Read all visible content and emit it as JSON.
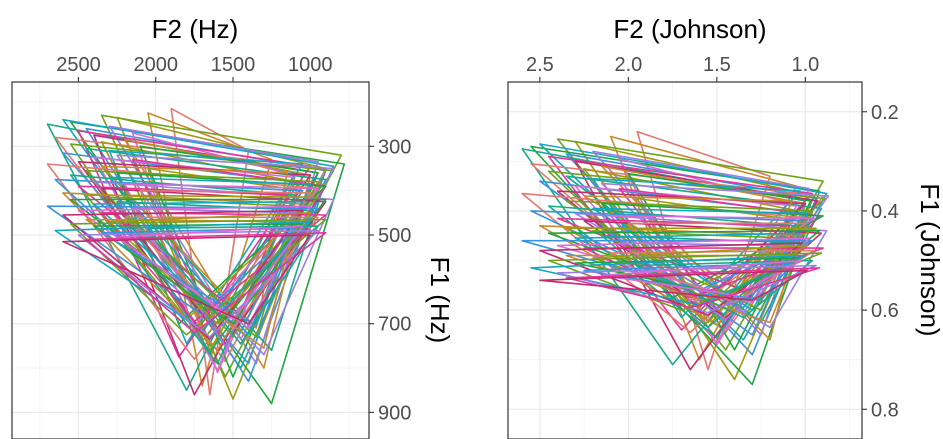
{
  "chart_data": [
    {
      "type": "line",
      "xlabel": "F2 (Hz)",
      "ylabel": "F1 (Hz)",
      "x_axis_position": "top",
      "y_axis_position": "right",
      "x_reversed": true,
      "y_reversed": true,
      "xlim": [
        2930,
        620
      ],
      "ylim": [
        155,
        960
      ],
      "x_ticks": [
        2500,
        2000,
        1500,
        1000
      ],
      "x_tick_labels": [
        "2500",
        "2000",
        "1500",
        "1000"
      ],
      "y_ticks": [
        300,
        500,
        700,
        900
      ],
      "y_tick_labels": [
        "300",
        "500",
        "700",
        "900"
      ],
      "grid": true,
      "legend": "none"
    },
    {
      "type": "line",
      "xlabel": "F2 (Johnson)",
      "ylabel": "F1 (Johnson)",
      "x_axis_position": "top",
      "y_axis_position": "right",
      "x_reversed": true,
      "y_reversed": true,
      "xlim": [
        2.68,
        0.68
      ],
      "ylim": [
        0.14,
        0.86
      ],
      "x_ticks": [
        2.5,
        2.0,
        1.5,
        1.0
      ],
      "x_tick_labels": [
        "2.5",
        "2.0",
        "1.5",
        "1.0"
      ],
      "y_ticks": [
        0.2,
        0.4,
        0.6,
        0.8
      ],
      "y_tick_labels": [
        "0.2",
        "0.4",
        "0.6",
        "0.8"
      ],
      "grid": true,
      "legend": "none"
    }
  ],
  "series_palette": [
    "#E07A70",
    "#C8892A",
    "#9E9A10",
    "#6FA21A",
    "#1FA53F",
    "#17A98A",
    "#15A6C3",
    "#3A93DC",
    "#9B7EE2",
    "#D56CD8",
    "#E0379B",
    "#C42A6E"
  ],
  "f1_hz": [
    [
      215,
      860,
      310
    ],
    [
      225,
      840,
      330
    ],
    [
      235,
      870,
      350
    ],
    [
      230,
      820,
      320
    ],
    [
      245,
      880,
      340
    ],
    [
      250,
      850,
      360
    ],
    [
      240,
      800,
      345
    ],
    [
      260,
      830,
      355
    ],
    [
      255,
      790,
      335
    ],
    [
      270,
      810,
      370
    ],
    [
      265,
      775,
      345
    ],
    [
      275,
      860,
      360
    ],
    [
      280,
      785,
      350
    ],
    [
      285,
      800,
      365
    ],
    [
      290,
      770,
      380
    ],
    [
      295,
      740,
      355
    ],
    [
      300,
      820,
      360
    ],
    [
      305,
      760,
      375
    ],
    [
      310,
      745,
      340
    ],
    [
      315,
      790,
      385
    ],
    [
      320,
      735,
      350
    ],
    [
      325,
      805,
      370
    ],
    [
      330,
      750,
      390
    ],
    [
      335,
      720,
      365
    ],
    [
      340,
      780,
      395
    ],
    [
      345,
      710,
      360
    ],
    [
      350,
      760,
      400
    ],
    [
      355,
      730,
      380
    ],
    [
      360,
      700,
      390
    ],
    [
      365,
      790,
      410
    ],
    [
      370,
      725,
      385
    ],
    [
      375,
      690,
      400
    ],
    [
      380,
      770,
      420
    ],
    [
      385,
      705,
      395
    ],
    [
      390,
      680,
      410
    ],
    [
      395,
      745,
      425
    ],
    [
      400,
      715,
      405
    ],
    [
      405,
      760,
      430
    ],
    [
      410,
      690,
      415
    ],
    [
      415,
      730,
      435
    ],
    [
      420,
      700,
      420
    ],
    [
      425,
      765,
      445
    ],
    [
      430,
      720,
      425
    ],
    [
      435,
      680,
      440
    ],
    [
      440,
      750,
      450
    ],
    [
      445,
      710,
      435
    ],
    [
      450,
      695,
      455
    ],
    [
      455,
      735,
      445
    ],
    [
      460,
      710,
      460
    ],
    [
      465,
      755,
      470
    ],
    [
      470,
      700,
      450
    ],
    [
      475,
      725,
      465
    ],
    [
      480,
      690,
      475
    ],
    [
      485,
      745,
      480
    ],
    [
      490,
      715,
      470
    ],
    [
      495,
      705,
      485
    ],
    [
      500,
      730,
      490
    ],
    [
      505,
      690,
      480
    ],
    [
      510,
      720,
      495
    ],
    [
      515,
      700,
      500
    ]
  ],
  "f2_hz": [
    [
      1900,
      1650,
      1400
    ],
    [
      2050,
      1700,
      1250
    ],
    [
      2250,
      1500,
      900
    ],
    [
      2350,
      1550,
      800
    ],
    [
      2550,
      1250,
      780
    ],
    [
      2700,
      1800,
      1100
    ],
    [
      2600,
      1450,
      850
    ],
    [
      2450,
      1400,
      900
    ],
    [
      2300,
      1350,
      950
    ],
    [
      2150,
      1600,
      1050
    ],
    [
      2500,
      1850,
      1000
    ],
    [
      2400,
      1750,
      950
    ],
    [
      2650,
      1550,
      900
    ],
    [
      2200,
      1300,
      1000
    ],
    [
      2350,
      1650,
      1100
    ],
    [
      2550,
      1700,
      850
    ],
    [
      2100,
      1500,
      950
    ],
    [
      2450,
      1250,
      900
    ],
    [
      2300,
      1800,
      1050
    ],
    [
      2600,
      1400,
      1000
    ],
    [
      2250,
      1450,
      850
    ],
    [
      2400,
      1600,
      1100
    ],
    [
      2150,
      1550,
      900
    ],
    [
      2500,
      1700,
      1000
    ],
    [
      2700,
      1750,
      950
    ],
    [
      2350,
      1350,
      1150
    ],
    [
      2050,
      1650,
      1050
    ],
    [
      2450,
      1500,
      950
    ],
    [
      2250,
      1850,
      900
    ],
    [
      2550,
      1600,
      1100
    ],
    [
      2300,
      1400,
      1000
    ],
    [
      2650,
      1650,
      1050
    ],
    [
      2400,
      1300,
      850
    ],
    [
      2200,
      1750,
      950
    ],
    [
      2500,
      1450,
      1150
    ],
    [
      2350,
      1550,
      900
    ],
    [
      2100,
      1700,
      1000
    ],
    [
      2600,
      1600,
      1050
    ],
    [
      2450,
      1800,
      950
    ],
    [
      2300,
      1350,
      1100
    ],
    [
      2550,
      1500,
      900
    ],
    [
      2250,
      1650,
      1000
    ],
    [
      2400,
      1450,
      1050
    ],
    [
      2700,
      1700,
      950
    ],
    [
      2150,
      1550,
      1100
    ],
    [
      2500,
      1400,
      1000
    ],
    [
      2350,
      1750,
      900
    ],
    [
      2600,
      1650,
      1050
    ],
    [
      2200,
      1500,
      950
    ],
    [
      2450,
      1300,
      1100
    ],
    [
      2300,
      1600,
      1000
    ],
    [
      2550,
      1800,
      900
    ],
    [
      2400,
      1550,
      1050
    ],
    [
      2050,
      1450,
      950
    ],
    [
      2650,
      1700,
      1000
    ],
    [
      2350,
      1350,
      1100
    ],
    [
      2500,
      1650,
      950
    ],
    [
      2250,
      1500,
      1050
    ],
    [
      2450,
      1750,
      900
    ],
    [
      2600,
      1400,
      1000
    ]
  ],
  "f1_j": [
    [
      0.24,
      0.72,
      0.33
    ],
    [
      0.25,
      0.7,
      0.35
    ],
    [
      0.26,
      0.74,
      0.37
    ],
    [
      0.255,
      0.68,
      0.34
    ],
    [
      0.27,
      0.75,
      0.36
    ],
    [
      0.275,
      0.71,
      0.38
    ],
    [
      0.265,
      0.66,
      0.365
    ],
    [
      0.285,
      0.69,
      0.375
    ],
    [
      0.28,
      0.65,
      0.355
    ],
    [
      0.295,
      0.67,
      0.39
    ],
    [
      0.29,
      0.64,
      0.365
    ],
    [
      0.3,
      0.72,
      0.38
    ],
    [
      0.305,
      0.645,
      0.37
    ],
    [
      0.31,
      0.66,
      0.385
    ],
    [
      0.315,
      0.635,
      0.4
    ],
    [
      0.32,
      0.61,
      0.375
    ],
    [
      0.325,
      0.68,
      0.38
    ],
    [
      0.33,
      0.625,
      0.395
    ],
    [
      0.335,
      0.615,
      0.36
    ],
    [
      0.34,
      0.65,
      0.405
    ],
    [
      0.345,
      0.605,
      0.37
    ],
    [
      0.35,
      0.665,
      0.39
    ],
    [
      0.355,
      0.62,
      0.41
    ],
    [
      0.36,
      0.595,
      0.385
    ],
    [
      0.365,
      0.645,
      0.415
    ],
    [
      0.37,
      0.585,
      0.38
    ],
    [
      0.375,
      0.625,
      0.42
    ],
    [
      0.38,
      0.6,
      0.4
    ],
    [
      0.385,
      0.575,
      0.41
    ],
    [
      0.39,
      0.655,
      0.43
    ],
    [
      0.395,
      0.6,
      0.405
    ],
    [
      0.4,
      0.57,
      0.42
    ],
    [
      0.405,
      0.635,
      0.44
    ],
    [
      0.41,
      0.58,
      0.415
    ],
    [
      0.415,
      0.56,
      0.43
    ],
    [
      0.42,
      0.615,
      0.445
    ],
    [
      0.425,
      0.59,
      0.425
    ],
    [
      0.43,
      0.63,
      0.45
    ],
    [
      0.435,
      0.57,
      0.435
    ],
    [
      0.44,
      0.6,
      0.455
    ],
    [
      0.445,
      0.58,
      0.44
    ],
    [
      0.45,
      0.635,
      0.465
    ],
    [
      0.455,
      0.595,
      0.445
    ],
    [
      0.46,
      0.56,
      0.46
    ],
    [
      0.465,
      0.62,
      0.47
    ],
    [
      0.47,
      0.585,
      0.455
    ],
    [
      0.475,
      0.575,
      0.475
    ],
    [
      0.48,
      0.61,
      0.465
    ],
    [
      0.485,
      0.585,
      0.48
    ],
    [
      0.49,
      0.625,
      0.49
    ],
    [
      0.495,
      0.58,
      0.47
    ],
    [
      0.5,
      0.6,
      0.485
    ],
    [
      0.505,
      0.57,
      0.495
    ],
    [
      0.51,
      0.615,
      0.5
    ],
    [
      0.515,
      0.59,
      0.49
    ],
    [
      0.52,
      0.58,
      0.505
    ],
    [
      0.525,
      0.605,
      0.51
    ],
    [
      0.53,
      0.57,
      0.5
    ],
    [
      0.535,
      0.595,
      0.515
    ],
    [
      0.54,
      0.58,
      0.52
    ]
  ],
  "f2_j": [
    [
      1.95,
      1.55,
      1.2
    ],
    [
      2.1,
      1.6,
      1.05
    ],
    [
      2.3,
      1.4,
      0.95
    ],
    [
      2.4,
      1.45,
      0.9
    ],
    [
      2.55,
      1.3,
      0.92
    ],
    [
      2.6,
      1.75,
      1.0
    ],
    [
      2.5,
      1.35,
      0.88
    ],
    [
      2.35,
      1.3,
      0.94
    ],
    [
      2.2,
      1.25,
      0.98
    ],
    [
      2.05,
      1.5,
      1.02
    ],
    [
      2.45,
      1.7,
      0.96
    ],
    [
      2.3,
      1.65,
      0.93
    ],
    [
      2.55,
      1.45,
      0.9
    ],
    [
      2.15,
      1.2,
      1.0
    ],
    [
      2.25,
      1.55,
      1.04
    ],
    [
      2.45,
      1.6,
      0.89
    ],
    [
      2.0,
      1.4,
      0.97
    ],
    [
      2.35,
      1.25,
      0.91
    ],
    [
      2.2,
      1.7,
      1.03
    ],
    [
      2.5,
      1.3,
      0.99
    ],
    [
      2.15,
      1.35,
      0.87
    ],
    [
      2.3,
      1.5,
      1.05
    ],
    [
      2.05,
      1.45,
      0.92
    ],
    [
      2.4,
      1.6,
      1.0
    ],
    [
      2.6,
      1.65,
      0.95
    ],
    [
      2.25,
      1.25,
      1.08
    ],
    [
      1.95,
      1.55,
      1.02
    ],
    [
      2.35,
      1.4,
      0.96
    ],
    [
      2.15,
      1.75,
      0.9
    ],
    [
      2.45,
      1.5,
      1.06
    ],
    [
      2.2,
      1.3,
      0.99
    ],
    [
      2.55,
      1.55,
      1.03
    ],
    [
      2.3,
      1.2,
      0.88
    ],
    [
      2.1,
      1.65,
      0.95
    ],
    [
      2.4,
      1.35,
      1.09
    ],
    [
      2.25,
      1.45,
      0.91
    ],
    [
      2.0,
      1.6,
      1.0
    ],
    [
      2.5,
      1.5,
      1.04
    ],
    [
      2.35,
      1.7,
      0.94
    ],
    [
      2.2,
      1.25,
      1.07
    ],
    [
      2.45,
      1.4,
      0.92
    ],
    [
      2.15,
      1.55,
      0.99
    ],
    [
      2.3,
      1.35,
      1.03
    ],
    [
      2.6,
      1.6,
      0.96
    ],
    [
      2.05,
      1.45,
      1.06
    ],
    [
      2.4,
      1.3,
      0.98
    ],
    [
      2.25,
      1.65,
      0.9
    ],
    [
      2.5,
      1.55,
      1.02
    ],
    [
      2.1,
      1.4,
      0.95
    ],
    [
      2.35,
      1.2,
      1.05
    ],
    [
      2.2,
      1.5,
      0.99
    ],
    [
      2.45,
      1.7,
      0.91
    ],
    [
      2.3,
      1.45,
      1.03
    ],
    [
      1.95,
      1.35,
      0.96
    ],
    [
      2.55,
      1.6,
      1.0
    ],
    [
      2.25,
      1.25,
      1.07
    ],
    [
      2.4,
      1.55,
      0.94
    ],
    [
      2.15,
      1.4,
      1.02
    ],
    [
      2.35,
      1.65,
      0.92
    ],
    [
      2.5,
      1.3,
      0.99
    ]
  ]
}
